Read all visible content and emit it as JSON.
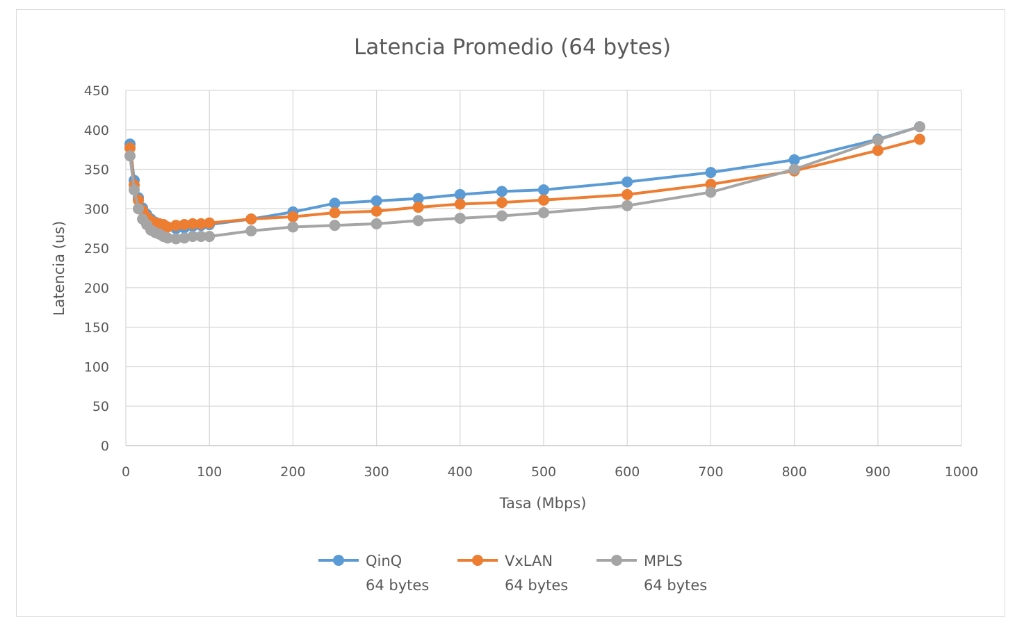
{
  "chart_data": {
    "type": "line",
    "title": "Latencia Promedio (64 bytes)",
    "xlabel": "Tasa (Mbps)",
    "ylabel": "Latencia (us)",
    "xlim": [
      0,
      1000
    ],
    "ylim": [
      0,
      450
    ],
    "xticks": [
      0,
      100,
      200,
      300,
      400,
      500,
      600,
      700,
      800,
      900,
      1000
    ],
    "yticks": [
      0,
      50,
      100,
      150,
      200,
      250,
      300,
      350,
      400,
      450
    ],
    "grid": true,
    "legend_position": "bottom",
    "series": [
      {
        "name": "QinQ\n64 bytes",
        "color": "#5b9bd5",
        "x": [
          5,
          10,
          15,
          20,
          25,
          30,
          35,
          40,
          45,
          50,
          60,
          70,
          80,
          90,
          100,
          150,
          200,
          250,
          300,
          350,
          400,
          450,
          500,
          600,
          700,
          800,
          900,
          950
        ],
        "y": [
          382,
          336,
          314,
          301,
          293,
          287,
          283,
          281,
          279,
          277,
          275,
          276,
          278,
          279,
          280,
          287,
          296,
          307,
          310,
          313,
          318,
          322,
          324,
          334,
          346,
          362,
          388,
          404
        ]
      },
      {
        "name": "VxLAN\n64 bytes",
        "color": "#ed7d31",
        "x": [
          5,
          10,
          15,
          20,
          25,
          30,
          35,
          40,
          45,
          50,
          60,
          70,
          80,
          90,
          100,
          150,
          200,
          250,
          300,
          350,
          400,
          450,
          500,
          600,
          700,
          800,
          900,
          950
        ],
        "y": [
          377,
          330,
          311,
          298,
          290,
          285,
          282,
          281,
          280,
          277,
          279,
          280,
          281,
          281,
          282,
          287,
          290,
          295,
          297,
          302,
          306,
          308,
          311,
          318,
          331,
          348,
          374,
          388
        ]
      },
      {
        "name": "MPLS\n64 bytes",
        "color": "#a5a5a5",
        "x": [
          5,
          10,
          15,
          20,
          25,
          30,
          35,
          40,
          45,
          50,
          60,
          70,
          80,
          90,
          100,
          150,
          200,
          250,
          300,
          350,
          400,
          450,
          500,
          600,
          700,
          800,
          900,
          950
        ],
        "y": [
          367,
          324,
          300,
          287,
          280,
          273,
          270,
          268,
          265,
          263,
          262,
          263,
          265,
          265,
          265,
          272,
          277,
          279,
          281,
          285,
          288,
          291,
          295,
          304,
          321,
          350,
          387,
          404
        ]
      }
    ]
  }
}
